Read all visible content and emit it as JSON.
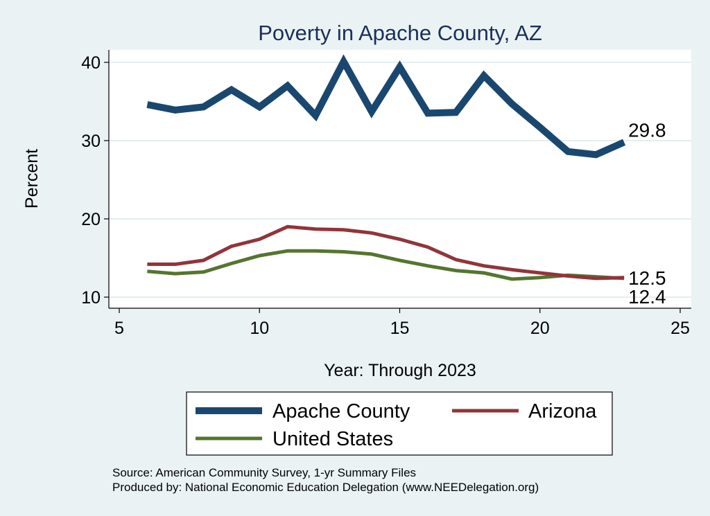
{
  "chart_data": {
    "type": "line",
    "title": "Poverty in Apache County, AZ",
    "xlabel": "Year: Through 2023",
    "ylabel": "Percent",
    "xlim": [
      5,
      25
    ],
    "ylim": [
      9,
      41
    ],
    "xticks": [
      5,
      10,
      15,
      20,
      25
    ],
    "yticks": [
      10,
      20,
      30,
      40
    ],
    "grid": "horizontal",
    "legend_position": "bottom",
    "x": [
      6,
      7,
      8,
      9,
      10,
      11,
      12,
      13,
      14,
      15,
      16,
      17,
      18,
      19,
      20,
      21,
      22,
      23
    ],
    "series": [
      {
        "name": "Apache County",
        "color": "#1a476f",
        "end_label": "29.8",
        "values": [
          34.6,
          33.9,
          34.3,
          36.5,
          34.3,
          37.0,
          33.2,
          40.1,
          33.7,
          39.4,
          33.5,
          33.6,
          38.3,
          34.7,
          31.7,
          28.6,
          28.2,
          29.8
        ]
      },
      {
        "name": "Arizona",
        "color": "#90353b",
        "end_label": "12.5",
        "values": [
          14.2,
          14.2,
          14.7,
          16.5,
          17.4,
          19.0,
          18.7,
          18.6,
          18.2,
          17.4,
          16.4,
          14.8,
          14.0,
          13.5,
          13.1,
          12.7,
          12.4,
          12.5
        ]
      },
      {
        "name": "United States",
        "color": "#55752f",
        "end_label": "12.4",
        "values": [
          13.3,
          13.0,
          13.2,
          14.3,
          15.3,
          15.9,
          15.9,
          15.8,
          15.5,
          14.7,
          14.0,
          13.4,
          13.1,
          12.3,
          12.5,
          12.8,
          12.6,
          12.4
        ]
      }
    ],
    "source_lines": [
      "Source: American Community Survey, 1-yr Summary Files",
      "Produced by: National Economic Education Delegation (www.NEEDelegation.org)"
    ]
  }
}
